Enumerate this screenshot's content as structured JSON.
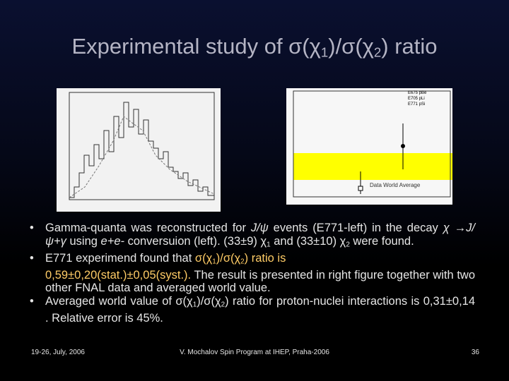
{
  "title": [
    "Experimental study of σ(χ",
    "1",
    ")/σ(χ",
    "2",
    ") ratio"
  ],
  "figure_right": {
    "legend": [
      "E675 pBe",
      "E705 pLi",
      "E771 pSi"
    ],
    "band_label": "Data World Average"
  },
  "bullets": [
    [
      "Gamma-quanta was reconstructed for ",
      "J/ψ",
      " events (E771-left) in the decay ",
      "χ →J/ψ+γ",
      " using ",
      "e+e-",
      " conversuion (left). (33±9) χ",
      "1",
      " and (33±10) χ",
      "2",
      " were found."
    ],
    [
      "E771 experimend found that ",
      "σ(χ",
      "1",
      ")/σ(χ",
      "2",
      ") ratio is",
      "0,59±0,20(stat.)±0,05(syst.).",
      " The result is presented in right figure together with two other FNAL data and averaged world value."
    ],
    [
      "Averaged world value of ",
      "σ(χ",
      "1",
      ")/σ(χ",
      "2",
      ") ratio for proton-nuclei interactions is 0,31±0,14 . Relative error is 45%."
    ]
  ],
  "footer": {
    "date": "19-26, July, 2006",
    "center": "V. Mochalov Spin Program at IHEP, Praha-2006",
    "page": "36"
  }
}
